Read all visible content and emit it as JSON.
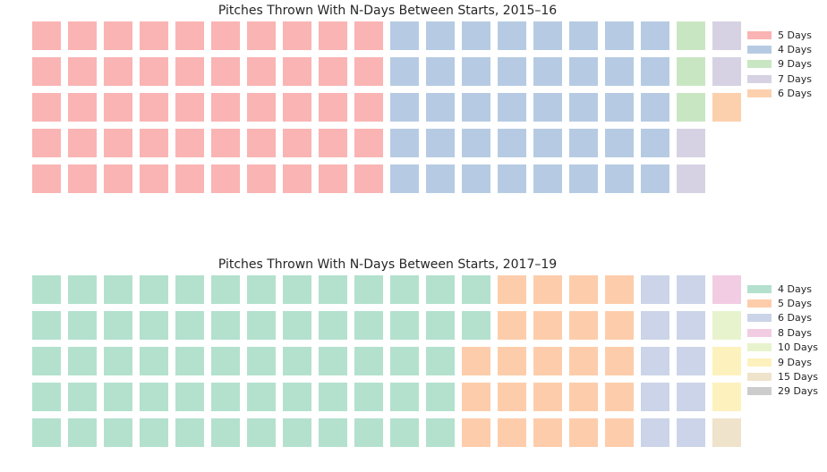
{
  "chart_data": [
    {
      "type": "waffle",
      "title": "Pitches Thrown With N-Days Between Starts, 2015–16",
      "rows": 5,
      "columns": 20,
      "legend_position": "right",
      "grid": false,
      "categories": [
        "5 Days",
        "4 Days",
        "9 Days",
        "7 Days",
        "6 Days"
      ],
      "values": [
        50,
        40,
        3,
        4,
        1
      ],
      "colors": [
        "#f9b4b3",
        "#b6cbe3",
        "#c9e6c3",
        "#d6d2e3",
        "#fcd0ad"
      ]
    },
    {
      "type": "waffle",
      "title": "Pitches Thrown With N-Days Between Starts, 2017–19",
      "rows": 5,
      "columns": 20,
      "legend_position": "right",
      "grid": false,
      "categories": [
        "4 Days",
        "5 Days",
        "6 Days",
        "8 Days",
        "10 Days",
        "9 Days",
        "15 Days",
        "29 Days"
      ],
      "values": [
        62,
        23,
        10,
        1,
        1,
        2,
        1,
        0
      ],
      "colors": [
        "#b3e1cd",
        "#fdcdab",
        "#cbd4e8",
        "#f2cce3",
        "#e7f3cd",
        "#fdf1bd",
        "#f0e3cb",
        "#cccccc"
      ]
    }
  ]
}
